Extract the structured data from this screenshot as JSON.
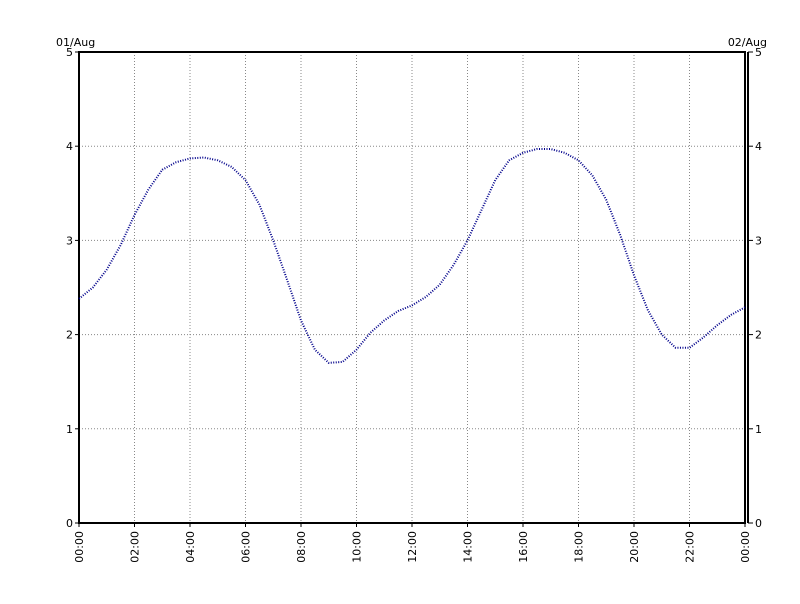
{
  "chart_data": {
    "type": "line",
    "annotations": [
      "01/Aug",
      "02/Aug"
    ],
    "x": [
      0,
      0.5,
      1,
      1.5,
      2,
      2.5,
      3,
      3.5,
      4,
      4.5,
      5,
      5.5,
      6,
      6.5,
      7,
      7.5,
      8,
      8.5,
      9,
      9.5,
      10,
      10.5,
      11,
      11.5,
      12,
      12.5,
      13,
      13.5,
      14,
      14.5,
      15,
      15.5,
      16,
      16.5,
      17,
      17.5,
      18,
      18.5,
      19,
      19.5,
      20,
      20.5,
      21,
      21.5,
      22,
      22.5,
      23,
      23.5,
      24
    ],
    "series": [
      {
        "color": "#00008b",
        "values": [
          2.38,
          2.5,
          2.69,
          2.95,
          3.27,
          3.54,
          3.75,
          3.83,
          3.87,
          3.88,
          3.85,
          3.78,
          3.64,
          3.38,
          3.0,
          2.58,
          2.15,
          1.84,
          1.7,
          1.71,
          1.84,
          2.02,
          2.15,
          2.25,
          2.31,
          2.4,
          2.53,
          2.74,
          3.0,
          3.32,
          3.64,
          3.85,
          3.93,
          3.97,
          3.97,
          3.93,
          3.85,
          3.69,
          3.43,
          3.06,
          2.63,
          2.26,
          2.0,
          1.86,
          1.86,
          1.97,
          2.1,
          2.21,
          2.29
        ]
      }
    ],
    "xlim": [
      0,
      24
    ],
    "xticks": [
      {
        "value": 0,
        "label": "00:00"
      },
      {
        "value": 2,
        "label": "02:00"
      },
      {
        "value": 4,
        "label": "04:00"
      },
      {
        "value": 6,
        "label": "06:00"
      },
      {
        "value": 8,
        "label": "08:00"
      },
      {
        "value": 10,
        "label": "10:00"
      },
      {
        "value": 12,
        "label": "12:00"
      },
      {
        "value": 14,
        "label": "14:00"
      },
      {
        "value": 16,
        "label": "16:00"
      },
      {
        "value": 18,
        "label": "18:00"
      },
      {
        "value": 20,
        "label": "20:00"
      },
      {
        "value": 22,
        "label": "22:00"
      },
      {
        "value": 24,
        "label": "00:00"
      }
    ],
    "ylim": [
      0,
      5
    ],
    "yticks": [
      0,
      1,
      2,
      3,
      4,
      5
    ],
    "y2lim": [
      0,
      5
    ],
    "y2ticks": [
      0,
      1,
      2,
      3,
      4,
      5
    ],
    "grid": true
  }
}
